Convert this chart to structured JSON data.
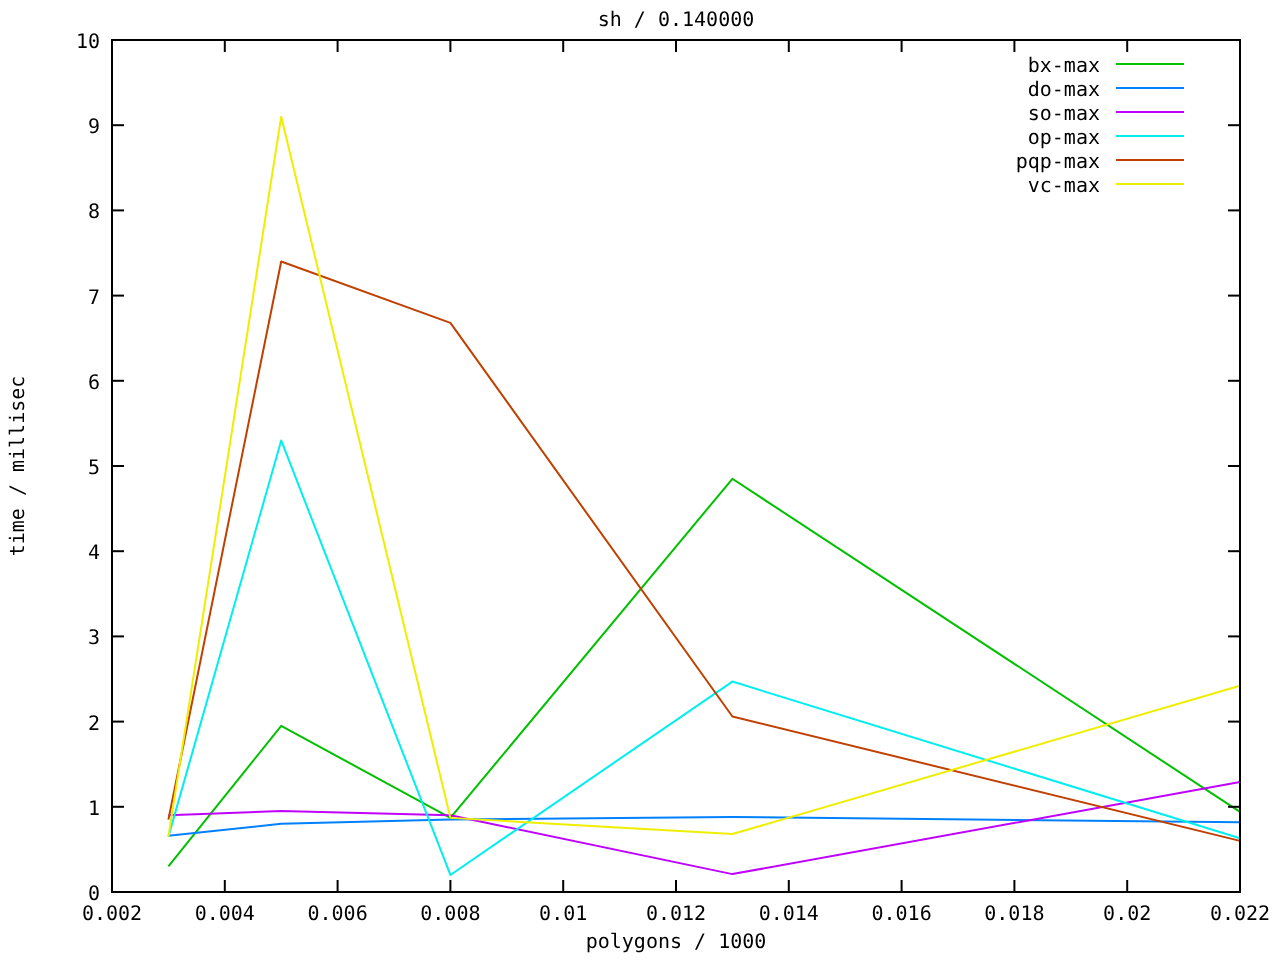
{
  "chart_data": {
    "type": "line",
    "title": "sh / 0.140000",
    "xlabel": "polygons / 1000",
    "ylabel": "time / millisec",
    "x": [
      0.003,
      0.005,
      0.008,
      0.013,
      0.022
    ],
    "xlim": [
      0.002,
      0.022
    ],
    "xticks": [
      0.002,
      0.004,
      0.006,
      0.008,
      0.01,
      0.012,
      0.014,
      0.016,
      0.018,
      0.02,
      0.022
    ],
    "ylim": [
      0,
      10
    ],
    "yticks": [
      0,
      1,
      2,
      3,
      4,
      5,
      6,
      7,
      8,
      9,
      10
    ],
    "grid": false,
    "legend": "top right",
    "marker": "none",
    "line_style": "solid",
    "series": [
      {
        "name": "bx-max",
        "color": "#00c000",
        "values": [
          0.3,
          1.95,
          0.87,
          4.85,
          0.94
        ]
      },
      {
        "name": "do-max",
        "color": "#0080ff",
        "values": [
          0.66,
          0.8,
          0.85,
          0.88,
          0.82
        ]
      },
      {
        "name": "so-max",
        "color": "#c000ff",
        "values": [
          0.9,
          0.95,
          0.9,
          0.21,
          1.29
        ]
      },
      {
        "name": "op-max",
        "color": "#00eeee",
        "values": [
          0.65,
          5.3,
          0.2,
          2.47,
          0.63
        ]
      },
      {
        "name": "pqp-max",
        "color": "#c04000",
        "values": [
          0.85,
          7.4,
          6.68,
          2.06,
          0.6
        ]
      },
      {
        "name": "vc-max",
        "color": "#eeee00",
        "values": [
          0.65,
          9.1,
          0.87,
          0.68,
          2.42
        ]
      }
    ]
  }
}
